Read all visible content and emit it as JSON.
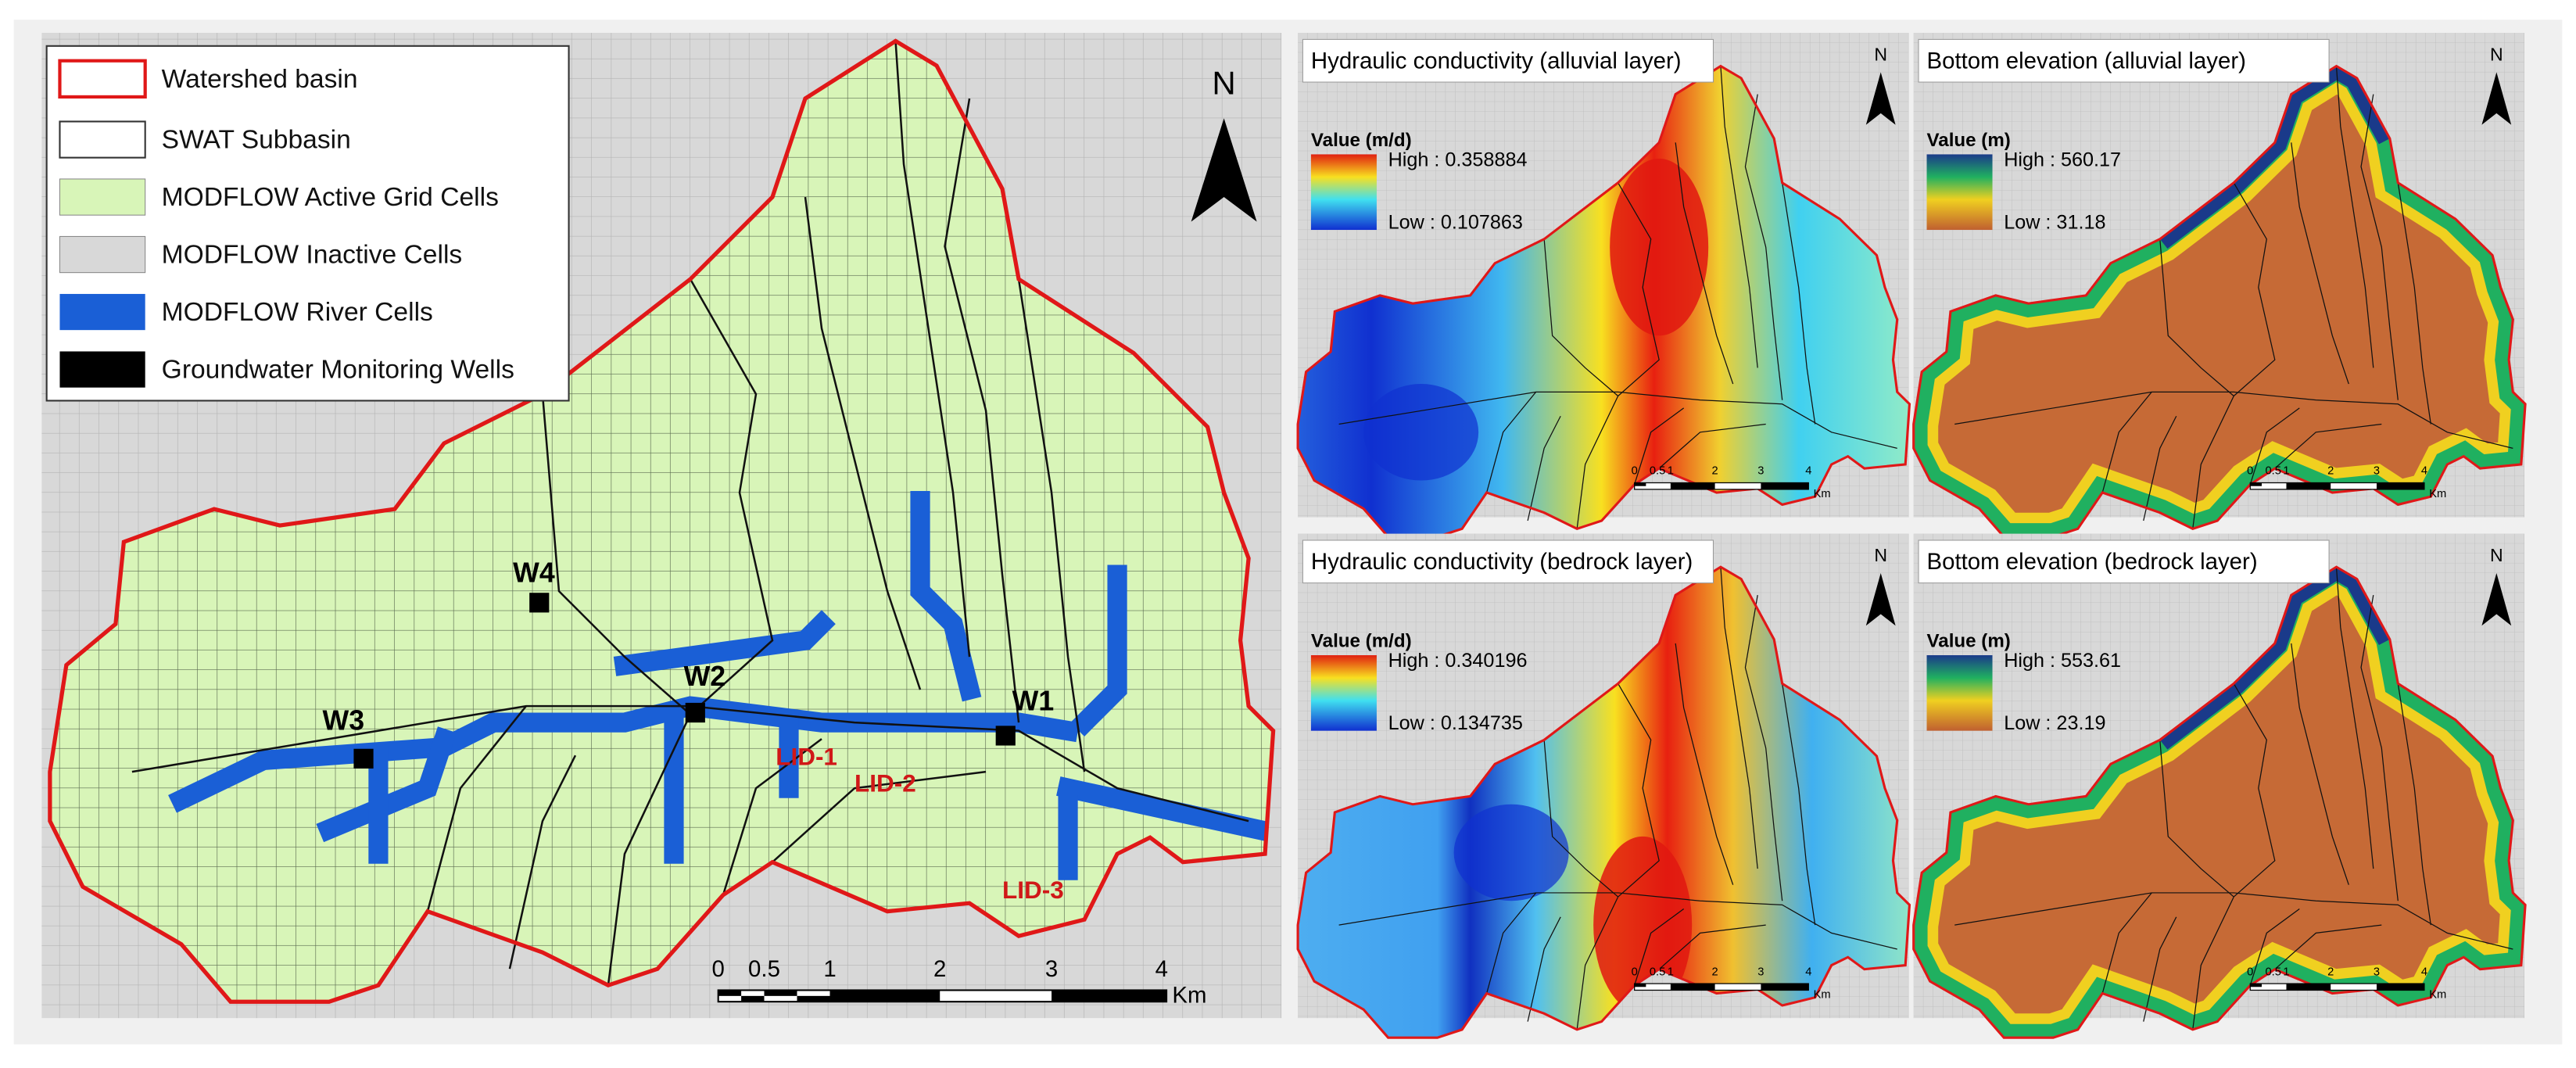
{
  "main_map": {
    "legend": [
      "Watershed basin",
      "SWAT Subbasin",
      "MODFLOW Active Grid Cells",
      "MODFLOW Inactive Cells",
      "MODFLOW River Cells",
      "Groundwater Monitoring Wells"
    ],
    "wells": [
      "W1",
      "W2",
      "W3",
      "W4"
    ],
    "lid": [
      "LID-1",
      "LID-2",
      "LID-3"
    ],
    "north": "N",
    "scale_bar": {
      "labels": [
        "0",
        "0.5",
        "1",
        "2",
        "3",
        "4"
      ],
      "unit": "Km"
    }
  },
  "panels": [
    {
      "title": "Hydraulic conductivity (alluvial layer)",
      "legend_title": "Value (m/d)",
      "high": "High : 0.358884",
      "low": "Low : 0.107863"
    },
    {
      "title": "Bottom elevation (alluvial layer)",
      "legend_title": "Value (m)",
      "high": "High : 560.17",
      "low": "Low : 31.18"
    },
    {
      "title": "Hydraulic conductivity (bedrock layer)",
      "legend_title": "Value (m/d)",
      "high": "High : 0.340196",
      "low": "Low : 0.134735"
    },
    {
      "title": "Bottom elevation (bedrock layer)",
      "legend_title": "Value (m)",
      "high": "High : 553.61",
      "low": "Low : 23.19"
    }
  ],
  "panel_north": "N",
  "panel_scale_bar": {
    "labels": [
      "0",
      "0.5",
      "1",
      "2",
      "3",
      "4"
    ],
    "unit": "Km"
  }
}
